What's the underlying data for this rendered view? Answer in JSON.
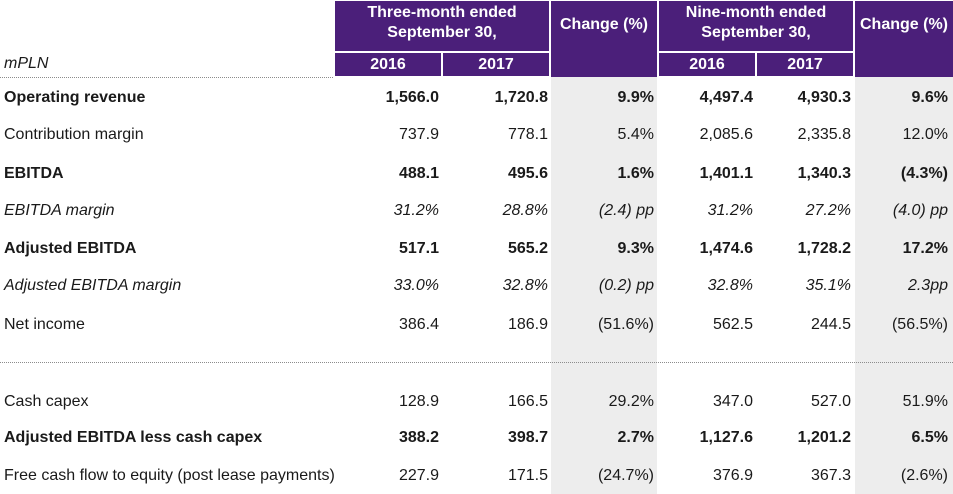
{
  "table": {
    "unit_label": "mPLN",
    "header": {
      "three_month": "Three-month ended September 30,",
      "nine_month": "Nine-month ended September 30,",
      "change": "Change (%)",
      "year_2016": "2016",
      "year_2017": "2017"
    },
    "rows": [
      {
        "label": "Operating revenue",
        "q2016": "1,566.0",
        "q2017": "1,720.8",
        "q_change": "9.9%",
        "n2016": "4,497.4",
        "n2017": "4,930.3",
        "n_change": "9.6%"
      },
      {
        "label": "Contribution margin",
        "q2016": "737.9",
        "q2017": "778.1",
        "q_change": "5.4%",
        "n2016": "2,085.6",
        "n2017": "2,335.8",
        "n_change": "12.0%"
      },
      {
        "label": "EBITDA",
        "q2016": "488.1",
        "q2017": "495.6",
        "q_change": "1.6%",
        "n2016": "1,401.1",
        "n2017": "1,340.3",
        "n_change": "(4.3%)"
      },
      {
        "label": "EBITDA margin",
        "q2016": "31.2%",
        "q2017": "28.8%",
        "q_change": "(2.4) pp",
        "n2016": "31.2%",
        "n2017": "27.2%",
        "n_change": "(4.0) pp"
      },
      {
        "label": "Adjusted EBITDA",
        "q2016": "517.1",
        "q2017": "565.2",
        "q_change": "9.3%",
        "n2016": "1,474.6",
        "n2017": "1,728.2",
        "n_change": "17.2%"
      },
      {
        "label": "Adjusted EBITDA margin",
        "q2016": "33.0%",
        "q2017": "32.8%",
        "q_change": "(0.2) pp",
        "n2016": "32.8%",
        "n2017": "35.1%",
        "n_change": "2.3pp"
      },
      {
        "label": "Net income",
        "q2016": "386.4",
        "q2017": "186.9",
        "q_change": "(51.6%)",
        "n2016": "562.5",
        "n2017": "244.5",
        "n_change": "(56.5%)"
      },
      {
        "label": "Cash capex",
        "q2016": "128.9",
        "q2017": "166.5",
        "q_change": "29.2%",
        "n2016": "347.0",
        "n2017": "527.0",
        "n_change": "51.9%"
      },
      {
        "label": "Adjusted EBITDA less cash capex",
        "q2016": "388.2",
        "q2017": "398.7",
        "q_change": "2.7%",
        "n2016": "1,127.6",
        "n2017": "1,201.2",
        "n_change": "6.5%"
      },
      {
        "label": "Free cash flow to equity (post lease payments)",
        "q2016": "227.9",
        "q2017": "171.5",
        "q_change": "(24.7%)",
        "n2016": "376.9",
        "n2017": "367.3",
        "n_change": "(2.6%)"
      }
    ]
  }
}
